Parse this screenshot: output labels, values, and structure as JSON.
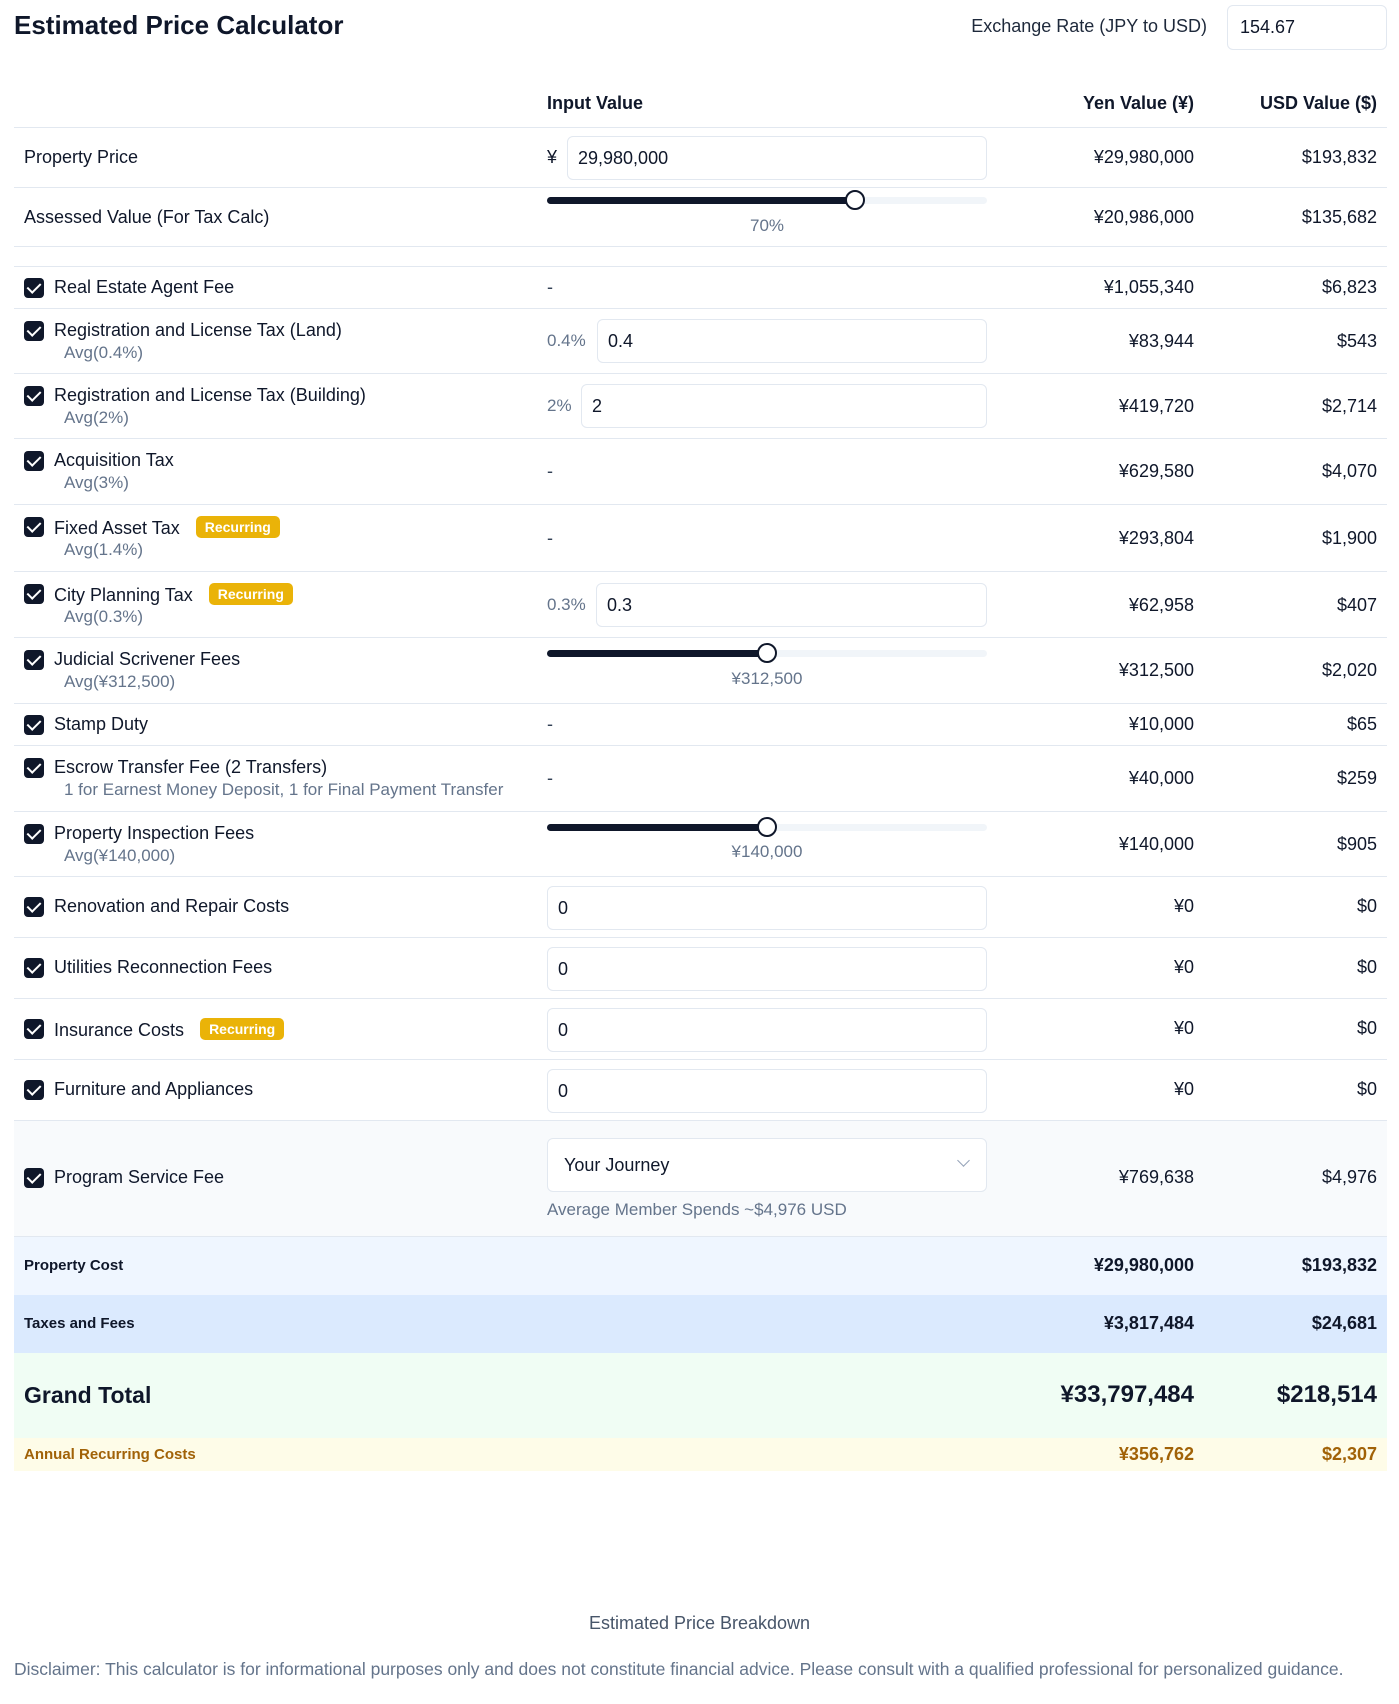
{
  "header": {
    "title": "Estimated Price Calculator",
    "exchange_label": "Exchange Rate (JPY to USD)",
    "exchange_value": "154.67"
  },
  "columns": {
    "input": "Input Value",
    "yen": "Yen Value (¥)",
    "usd": "USD Value ($)"
  },
  "property_price": {
    "label": "Property Price",
    "currency_symbol": "¥",
    "input": "29,980,000",
    "yen": "¥29,980,000",
    "usd": "$193,832"
  },
  "assessed_value": {
    "label": "Assessed Value (For Tax Calc)",
    "slider_value": 0.7,
    "slider_label": "70%",
    "yen": "¥20,986,000",
    "usd": "$135,682"
  },
  "fees": {
    "agent": {
      "name": "Real Estate Agent Fee",
      "input": "-",
      "yen": "¥1,055,340",
      "usd": "$6,823"
    },
    "reg_land": {
      "name": "Registration and License Tax (Land)",
      "sub": "Avg(0.4%)",
      "pct": "0.4%",
      "input": "0.4",
      "yen": "¥83,944",
      "usd": "$543"
    },
    "reg_building": {
      "name": "Registration and License Tax (Building)",
      "sub": "Avg(2%)",
      "pct": "2%",
      "input": "2",
      "yen": "¥419,720",
      "usd": "$2,714"
    },
    "acquisition": {
      "name": "Acquisition Tax",
      "sub": "Avg(3%)",
      "input": "-",
      "yen": "¥629,580",
      "usd": "$4,070"
    },
    "fixed_asset": {
      "name": "Fixed Asset Tax",
      "badge": "Recurring",
      "sub": "Avg(1.4%)",
      "input": "-",
      "yen": "¥293,804",
      "usd": "$1,900"
    },
    "city_planning": {
      "name": "City Planning Tax",
      "badge": "Recurring",
      "sub": "Avg(0.3%)",
      "pct": "0.3%",
      "input": "0.3",
      "yen": "¥62,958",
      "usd": "$407"
    },
    "judicial": {
      "name": "Judicial Scrivener Fees",
      "sub": "Avg(¥312,500)",
      "slider_value": 0.5,
      "slider_label": "¥312,500",
      "yen": "¥312,500",
      "usd": "$2,020"
    },
    "stamp": {
      "name": "Stamp Duty",
      "input": "-",
      "yen": "¥10,000",
      "usd": "$65"
    },
    "escrow": {
      "name": "Escrow Transfer Fee (2 Transfers)",
      "sub": "1 for Earnest Money Deposit, 1 for Final Payment Transfer",
      "input": "-",
      "yen": "¥40,000",
      "usd": "$259"
    },
    "inspection": {
      "name": "Property Inspection Fees",
      "sub": "Avg(¥140,000)",
      "slider_value": 0.5,
      "slider_label": "¥140,000",
      "yen": "¥140,000",
      "usd": "$905"
    },
    "renovation": {
      "name": "Renovation and Repair Costs",
      "input": "0",
      "yen": "¥0",
      "usd": "$0"
    },
    "utilities": {
      "name": "Utilities Reconnection Fees",
      "input": "0",
      "yen": "¥0",
      "usd": "$0"
    },
    "insurance": {
      "name": "Insurance Costs",
      "badge": "Recurring",
      "input": "0",
      "yen": "¥0",
      "usd": "$0"
    },
    "furniture": {
      "name": "Furniture and Appliances",
      "input": "0",
      "yen": "¥0",
      "usd": "$0"
    },
    "program": {
      "name": "Program Service Fee",
      "select": "Your Journey",
      "note": "Average Member Spends ~$4,976 USD",
      "yen": "¥769,638",
      "usd": "$4,976"
    }
  },
  "summary": {
    "property_cost": {
      "label": "Property Cost",
      "yen": "¥29,980,000",
      "usd": "$193,832"
    },
    "taxes_fees": {
      "label": "Taxes and Fees",
      "yen": "¥3,817,484",
      "usd": "$24,681"
    },
    "grand_total": {
      "label": "Grand Total",
      "yen": "¥33,797,484",
      "usd": "$218,514"
    },
    "annual_recurring": {
      "label": "Annual Recurring Costs",
      "yen": "¥356,762",
      "usd": "$2,307"
    }
  },
  "footer": {
    "breakdown_title": "Estimated Price Breakdown",
    "disclaimer": "Disclaimer: This calculator is for informational purposes only and does not constitute financial advice. Please consult with a qualified professional for personalized guidance."
  },
  "colors": {
    "primary": "#0f172a",
    "recurring_badge": "#eab308",
    "property_cost_bg": "#eff6ff",
    "taxes_fees_bg": "#dbeafe",
    "grand_total_bg": "#f0fdf4",
    "annual_recurring_bg": "#fefce8",
    "annual_recurring_text": "#a16207"
  }
}
